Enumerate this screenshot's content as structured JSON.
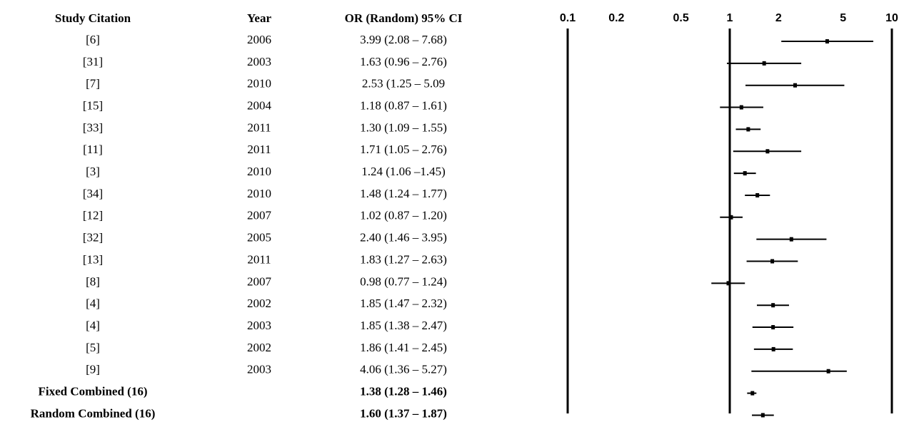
{
  "chart_data": {
    "type": "forest",
    "columns": {
      "citation": "Study Citation",
      "year": "Year",
      "ci": "OR (Random) 95% CI"
    },
    "log_scale": true,
    "xlim": [
      0.1,
      10
    ],
    "xticks": [
      0.1,
      0.2,
      0.5,
      1,
      2,
      5,
      10
    ],
    "reference_lines": [
      0.1,
      1,
      10
    ],
    "color": "#000000",
    "rows": [
      {
        "citation": "[6]",
        "year": "2006",
        "ci_text": "3.99 (2.08 – 7.68)",
        "or": 3.99,
        "lower": 2.08,
        "upper": 7.68
      },
      {
        "citation": "[31]",
        "year": "2003",
        "ci_text": "1.63 (0.96 – 2.76)",
        "or": 1.63,
        "lower": 0.96,
        "upper": 2.76
      },
      {
        "citation": "[7]",
        "year": "2010",
        "ci_text": "2.53 (1.25 – 5.09",
        "or": 2.53,
        "lower": 1.25,
        "upper": 5.09
      },
      {
        "citation": "[15]",
        "year": "2004",
        "ci_text": "1.18 (0.87 – 1.61)",
        "or": 1.18,
        "lower": 0.87,
        "upper": 1.61
      },
      {
        "citation": "[33]",
        "year": "2011",
        "ci_text": "1.30 (1.09 – 1.55)",
        "or": 1.3,
        "lower": 1.09,
        "upper": 1.55
      },
      {
        "citation": "[11]",
        "year": "2011",
        "ci_text": "1.71 (1.05 – 2.76)",
        "or": 1.71,
        "lower": 1.05,
        "upper": 2.76
      },
      {
        "citation": "[3]",
        "year": "2010",
        "ci_text": "1.24 (1.06 –1.45)",
        "or": 1.24,
        "lower": 1.06,
        "upper": 1.45
      },
      {
        "citation": "[34]",
        "year": "2010",
        "ci_text": "1.48 (1.24 – 1.77)",
        "or": 1.48,
        "lower": 1.24,
        "upper": 1.77
      },
      {
        "citation": "[12]",
        "year": "2007",
        "ci_text": "1.02 (0.87 – 1.20)",
        "or": 1.02,
        "lower": 0.87,
        "upper": 1.2
      },
      {
        "citation": "[32]",
        "year": "2005",
        "ci_text": "2.40 (1.46 – 3.95)",
        "or": 2.4,
        "lower": 1.46,
        "upper": 3.95
      },
      {
        "citation": "[13]",
        "year": "2011",
        "ci_text": "1.83 (1.27 – 2.63)",
        "or": 1.83,
        "lower": 1.27,
        "upper": 2.63
      },
      {
        "citation": "[8]",
        "year": "2007",
        "ci_text": "0.98 (0.77 – 1.24)",
        "or": 0.98,
        "lower": 0.77,
        "upper": 1.24
      },
      {
        "citation": "[4]",
        "year": "2002",
        "ci_text": "1.85 (1.47 – 2.32)",
        "or": 1.85,
        "lower": 1.47,
        "upper": 2.32
      },
      {
        "citation": "[4]",
        "year": "2003",
        "ci_text": "1.85 (1.38 – 2.47)",
        "or": 1.85,
        "lower": 1.38,
        "upper": 2.47
      },
      {
        "citation": "[5]",
        "year": "2002",
        "ci_text": "1.86 (1.41 – 2.45)",
        "or": 1.86,
        "lower": 1.41,
        "upper": 2.45
      },
      {
        "citation": "[9]",
        "year": "2003",
        "ci_text": "4.06 (1.36 – 5.27)",
        "or": 4.06,
        "lower": 1.36,
        "upper": 5.27
      },
      {
        "citation": "Fixed Combined (16)",
        "ci_text": "1.38 (1.28 – 1.46)",
        "or": 1.38,
        "lower": 1.28,
        "upper": 1.46,
        "bold": true
      },
      {
        "citation": "Random Combined (16)",
        "ci_text": "1.60 (1.37 – 1.87)",
        "or": 1.6,
        "lower": 1.37,
        "upper": 1.87,
        "bold": true
      }
    ]
  }
}
